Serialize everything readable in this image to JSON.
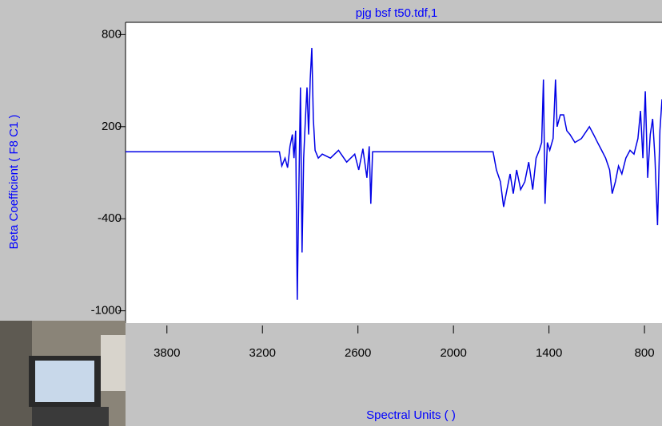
{
  "chart_data": {
    "type": "line",
    "title": "pjg bsf t50.tdf,1",
    "xlabel": "Spectral Units ( )",
    "ylabel": "Beta Coefficient ( F8 C1 )",
    "xlim": [
      4060,
      690
    ],
    "ylim": [
      -1080,
      880
    ],
    "xticks": [
      3800,
      3200,
      2600,
      2000,
      1400,
      800
    ],
    "yticks": [
      800,
      200,
      -400,
      -1000
    ],
    "color": "#0000e6",
    "x": [
      4060,
      3093,
      3078,
      3058,
      3042,
      3027,
      3012,
      3002,
      2991,
      2981,
      2971,
      2961,
      2951,
      2941,
      2930,
      2920,
      2910,
      2900,
      2890,
      2880,
      2869,
      2849,
      2824,
      2773,
      2722,
      2671,
      2620,
      2595,
      2569,
      2544,
      2529,
      2519,
      2508,
      1751,
      1730,
      1705,
      1685,
      1664,
      1644,
      1624,
      1603,
      1578,
      1552,
      1527,
      1502,
      1481,
      1461,
      1446,
      1435,
      1425,
      1410,
      1395,
      1374,
      1359,
      1349,
      1329,
      1308,
      1288,
      1268,
      1237,
      1196,
      1146,
      1120,
      1095,
      1069,
      1044,
      1019,
      1003,
      983,
      963,
      942,
      917,
      891,
      866,
      841,
      825,
      810,
      795,
      780,
      764,
      749,
      734,
      718,
      703,
      690
    ],
    "values": [
      36,
      36,
      -56,
      -5,
      -67,
      72,
      149,
      -5,
      174,
      -928,
      -210,
      456,
      -620,
      -5,
      251,
      456,
      149,
      508,
      713,
      251,
      46,
      -5,
      21,
      -5,
      46,
      -31,
      21,
      -82,
      56,
      -133,
      72,
      -303,
      36,
      36,
      -82,
      -159,
      -323,
      -210,
      -108,
      -236,
      -82,
      -210,
      -159,
      -31,
      -210,
      -5,
      46,
      97,
      508,
      -303,
      97,
      46,
      123,
      508,
      200,
      277,
      277,
      174,
      149,
      97,
      123,
      200,
      149,
      97,
      46,
      -5,
      -82,
      -236,
      -159,
      -56,
      -108,
      -5,
      46,
      21,
      123,
      303,
      -5,
      431,
      -133,
      149,
      251,
      -5,
      -441,
      174,
      379
    ]
  }
}
